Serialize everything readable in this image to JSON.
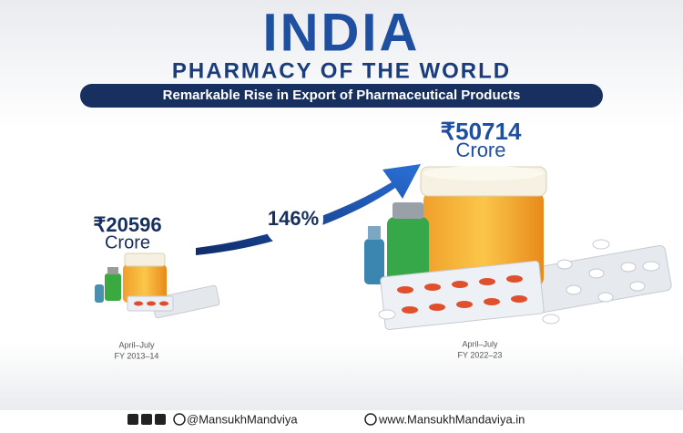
{
  "header": {
    "title": "INDIA",
    "subtitle": "PHARMACY OF THE WORLD",
    "banner": "Remarkable Rise in Export of Pharmaceutical Products"
  },
  "before": {
    "amount": "₹20596",
    "unit": "Crore",
    "period": "April–July",
    "year": "FY 2013–14"
  },
  "growth": "146%",
  "after": {
    "amount": "₹50714",
    "unit": "Crore",
    "period": "April–July",
    "year": "FY 2022–23"
  },
  "footer": {
    "social": "@MansukhMandviya",
    "website": "www.MansukhMandaviya.in"
  }
}
